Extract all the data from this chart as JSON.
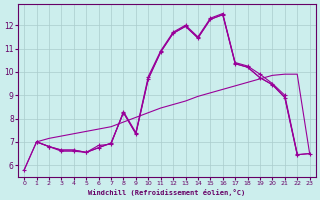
{
  "xlabel": "Windchill (Refroidissement éolien,°C)",
  "bg_color": "#cceeed",
  "grid_color": "#aacccc",
  "line_color": "#990099",
  "xlim": [
    -0.5,
    23.5
  ],
  "ylim": [
    5.5,
    12.9
  ],
  "xticks": [
    0,
    1,
    2,
    3,
    4,
    5,
    6,
    7,
    8,
    9,
    10,
    11,
    12,
    13,
    14,
    15,
    16,
    17,
    18,
    19,
    20,
    21,
    22,
    23
  ],
  "yticks": [
    6,
    7,
    8,
    9,
    10,
    11,
    12
  ],
  "line1_x": [
    0,
    1,
    2,
    3,
    4,
    5,
    6,
    7,
    8,
    9,
    10,
    11,
    12,
    13,
    14,
    15,
    16,
    17,
    18,
    19,
    20,
    21,
    22
  ],
  "line1_y": [
    5.8,
    7.0,
    6.8,
    6.6,
    6.6,
    6.55,
    6.85,
    6.9,
    8.3,
    7.4,
    9.8,
    10.9,
    11.7,
    12.0,
    11.5,
    12.3,
    12.5,
    10.4,
    10.25,
    9.9,
    9.5,
    9.0,
    6.5
  ],
  "line2_x": [
    1,
    2,
    3,
    4,
    5,
    6,
    7,
    8,
    9,
    10,
    11,
    12,
    13,
    14,
    15,
    16,
    17,
    18,
    19,
    20,
    21,
    22,
    23
  ],
  "line2_y": [
    7.0,
    6.8,
    6.65,
    6.65,
    6.55,
    6.75,
    6.95,
    8.25,
    7.35,
    9.7,
    10.85,
    11.65,
    11.95,
    11.45,
    12.25,
    12.45,
    10.35,
    10.2,
    9.75,
    9.45,
    8.9,
    6.45,
    6.5
  ],
  "line3_x": [
    0,
    1,
    2,
    3,
    4,
    5,
    6,
    7,
    8,
    9,
    10,
    11,
    12,
    13,
    14,
    15,
    16,
    17,
    18,
    19,
    20,
    21,
    22,
    23
  ],
  "line3_y": [
    5.8,
    7.0,
    7.15,
    7.25,
    7.35,
    7.45,
    7.55,
    7.65,
    7.85,
    8.05,
    8.25,
    8.45,
    8.6,
    8.75,
    8.95,
    9.1,
    9.25,
    9.4,
    9.55,
    9.7,
    9.85,
    9.9,
    9.9,
    6.5
  ],
  "line4_x": [
    1,
    2,
    3,
    4,
    5,
    6,
    7,
    8,
    9,
    10,
    11,
    12,
    13,
    14,
    15,
    16,
    17,
    18,
    19,
    20,
    21,
    22,
    23
  ],
  "line4_y": [
    7.0,
    6.8,
    6.65,
    6.65,
    6.55,
    6.75,
    6.95,
    8.25,
    7.35,
    9.7,
    10.85,
    11.65,
    11.95,
    11.45,
    12.25,
    12.45,
    10.35,
    10.2,
    9.75,
    9.45,
    8.9,
    6.45,
    6.5
  ]
}
